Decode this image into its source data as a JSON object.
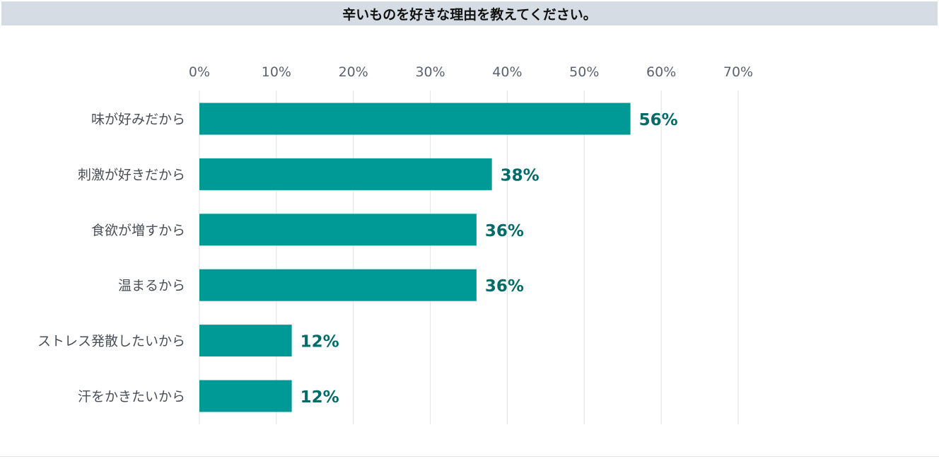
{
  "chart_data": {
    "type": "bar",
    "orientation": "horizontal",
    "title": "辛いものを好きな理由を教えてください。",
    "categories": [
      "味が好みだから",
      "刺激が好きだから",
      "食欲が増すから",
      "温まるから",
      "ストレス発散したいから",
      "汗をかきたいから"
    ],
    "values": [
      56,
      38,
      36,
      36,
      12,
      12
    ],
    "value_labels": [
      "56%",
      "38%",
      "36%",
      "36%",
      "12%",
      "12%"
    ],
    "xlim": [
      0,
      70
    ],
    "ticks": [
      "0%",
      "10%",
      "20%",
      "30%",
      "40%",
      "50%",
      "60%",
      "70%"
    ],
    "tick_values": [
      0,
      10,
      20,
      30,
      40,
      50,
      60,
      70
    ],
    "grid": true,
    "axis_position": "top",
    "legend": "none",
    "colors": {
      "bar": "#009a96",
      "value_label": "#006b67",
      "category_label": "#4a4f57",
      "tick_label": "#5a6270",
      "grid": "#e2e2e2",
      "title_background": "#d6dce4"
    }
  }
}
